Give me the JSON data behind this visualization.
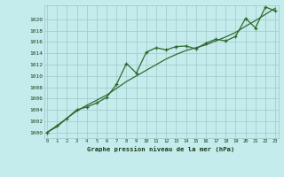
{
  "x": [
    0,
    1,
    2,
    3,
    4,
    5,
    6,
    7,
    8,
    9,
    10,
    11,
    12,
    13,
    14,
    15,
    16,
    17,
    18,
    19,
    20,
    21,
    22,
    23
  ],
  "y_actual": [
    1000.0,
    1001.2,
    1002.5,
    1004.0,
    1004.5,
    1005.2,
    1006.2,
    1008.5,
    1012.2,
    1010.5,
    1014.2,
    1015.0,
    1014.6,
    1015.2,
    1015.3,
    1014.8,
    1015.8,
    1016.5,
    1016.2,
    1017.0,
    1020.2,
    1018.5,
    1022.2,
    1021.5
  ],
  "y_trend": [
    1000.0,
    1001.0,
    1002.5,
    1003.8,
    1004.8,
    1005.7,
    1006.6,
    1007.8,
    1009.0,
    1010.0,
    1011.0,
    1012.0,
    1013.0,
    1013.8,
    1014.5,
    1015.0,
    1015.5,
    1016.2,
    1016.9,
    1017.7,
    1018.8,
    1019.8,
    1020.9,
    1022.0
  ],
  "yticks": [
    1000,
    1002,
    1004,
    1006,
    1008,
    1010,
    1012,
    1014,
    1016,
    1018,
    1020
  ],
  "ylim": [
    999.0,
    1022.5
  ],
  "xlim": [
    -0.3,
    23.3
  ],
  "line_color": "#2d6a2d",
  "bg_color": "#c5eced",
  "grid_color": "#a0c8c8",
  "title": "Graphe pression niveau de la mer (hPa)",
  "title_color": "#1a3a1a"
}
